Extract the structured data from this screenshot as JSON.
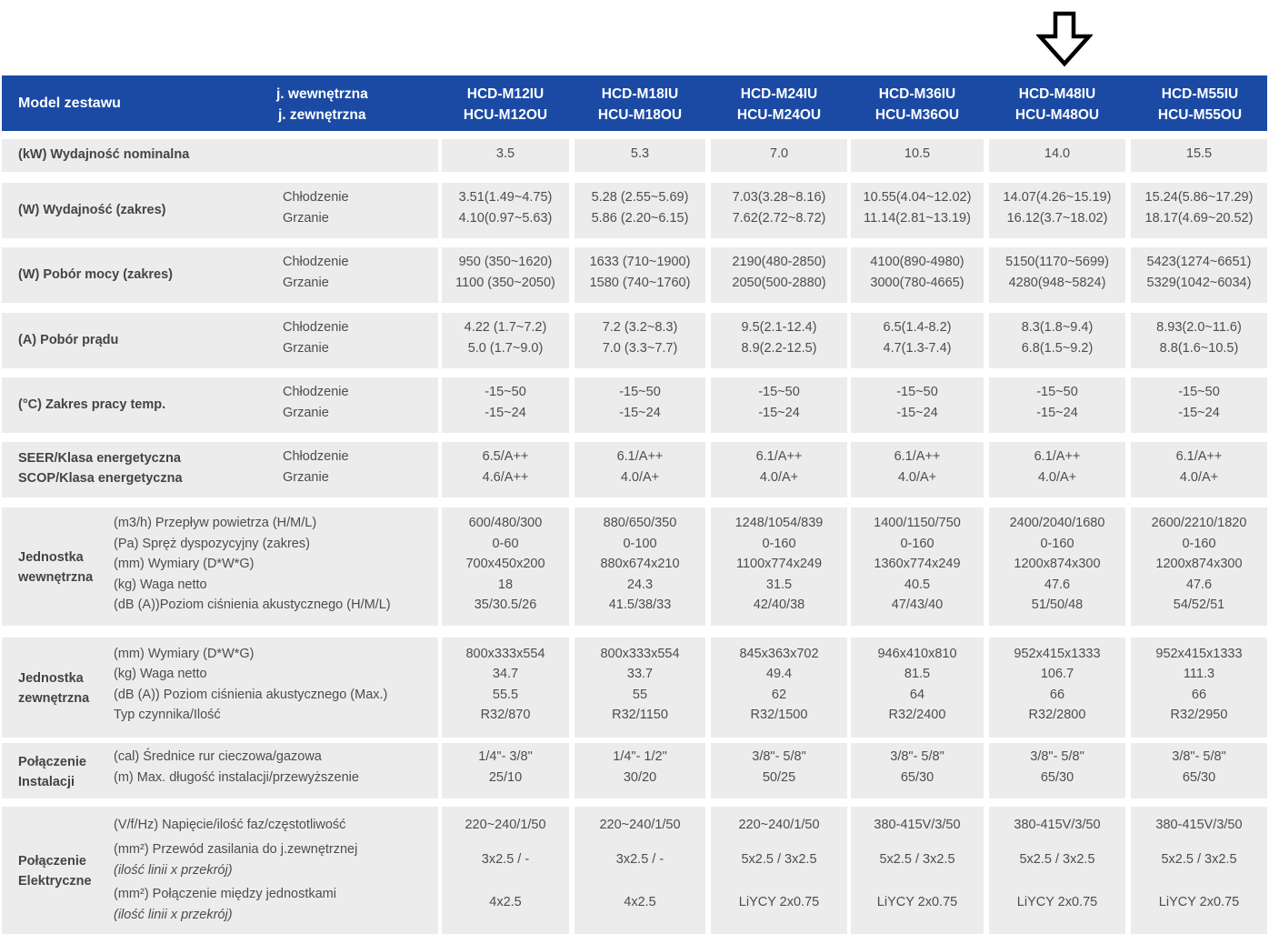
{
  "header": {
    "title": "Model zestawu",
    "unit_indoor": "j. wewnętrzna",
    "unit_outdoor": "j. zewnętrzna",
    "models": [
      {
        "indoor": "HCD-M12IU",
        "outdoor": "HCU-M12OU"
      },
      {
        "indoor": "HCD-M18IU",
        "outdoor": "HCU-M18OU"
      },
      {
        "indoor": "HCD-M24IU",
        "outdoor": "HCU-M24OU"
      },
      {
        "indoor": "HCD-M36IU",
        "outdoor": "HCU-M36OU"
      },
      {
        "indoor": "HCD-M48IU",
        "outdoor": "HCU-M48OU"
      },
      {
        "indoor": "HCD-M55IU",
        "outdoor": "HCU-M55OU"
      }
    ]
  },
  "rows": {
    "capacity_nominal": {
      "label": "(kW) Wydajność nominalna",
      "values": [
        "3.5",
        "5.3",
        "7.0",
        "10.5",
        "14.0",
        "15.5"
      ]
    },
    "capacity_range": {
      "label": "(W) Wydajność (zakres)",
      "sub": [
        "Chłodzenie",
        "Grzanie"
      ],
      "values": [
        [
          "3.51(1.49~4.75)",
          "4.10(0.97~5.63)"
        ],
        [
          "5.28 (2.55~5.69)",
          "5.86 (2.20~6.15)"
        ],
        [
          "7.03(3.28~8.16)",
          "7.62(2.72~8.72)"
        ],
        [
          "10.55(4.04~12.02)",
          "11.14(2.81~13.19)"
        ],
        [
          "14.07(4.26~15.19)",
          "16.12(3.7~18.02)"
        ],
        [
          "15.24(5.86~17.29)",
          "18.17(4.69~20.52)"
        ]
      ]
    },
    "power_input": {
      "label": "(W) Pobór mocy (zakres)",
      "sub": [
        "Chłodzenie",
        "Grzanie"
      ],
      "values": [
        [
          "950 (350~1620)",
          "1100 (350~2050)"
        ],
        [
          "1633 (710~1900)",
          "1580 (740~1760)"
        ],
        [
          "2190(480-2850)",
          "2050(500-2880)"
        ],
        [
          "4100(890-4980)",
          "3000(780-4665)"
        ],
        [
          "5150(1170~5699)",
          "4280(948~5824)"
        ],
        [
          "5423(1274~6651)",
          "5329(1042~6034)"
        ]
      ]
    },
    "current": {
      "label": "(A) Pobór prądu",
      "sub": [
        "Chłodzenie",
        "Grzanie"
      ],
      "values": [
        [
          "4.22 (1.7~7.2)",
          "5.0 (1.7~9.0)"
        ],
        [
          "7.2 (3.2~8.3)",
          "7.0 (3.3~7.7)"
        ],
        [
          "9.5(2.1-12.4)",
          "8.9(2.2-12.5)"
        ],
        [
          "6.5(1.4-8.2)",
          "4.7(1.3-7.4)"
        ],
        [
          "8.3(1.8~9.4)",
          "6.8(1.5~9.2)"
        ],
        [
          "8.93(2.0~11.6)",
          "8.8(1.6~10.5)"
        ]
      ]
    },
    "temp_range": {
      "label": "(°C) Zakres pracy temp.",
      "sub": [
        "Chłodzenie",
        "Grzanie"
      ],
      "values": [
        [
          "-15~50",
          "-15~24"
        ],
        [
          "-15~50",
          "-15~24"
        ],
        [
          "-15~50",
          "-15~24"
        ],
        [
          "-15~50",
          "-15~24"
        ],
        [
          "-15~50",
          "-15~24"
        ],
        [
          "-15~50",
          "-15~24"
        ]
      ]
    },
    "energy_class": {
      "label": [
        "SEER/Klasa energetyczna",
        "SCOP/Klasa energetyczna"
      ],
      "sub": [
        "Chłodzenie",
        "Grzanie"
      ],
      "values": [
        [
          "6.5/A++",
          "4.6/A++"
        ],
        [
          "6.1/A++",
          "4.0/A+"
        ],
        [
          "6.1/A++",
          "4.0/A+"
        ],
        [
          "6.1/A++",
          "4.0/A+"
        ],
        [
          "6.1/A++",
          "4.0/A+"
        ],
        [
          "6.1/A++",
          "4.0/A+"
        ]
      ]
    },
    "indoor_unit": {
      "label": [
        "Jednostka",
        "wewnętrzna"
      ],
      "desc": [
        "(m3/h) Przepływ powietrza (H/M/L)",
        "(Pa) Spręż dyspozycyjny (zakres)",
        "(mm) Wymiary (D*W*G)",
        "(kg) Waga netto",
        "(dB (A))Poziom ciśnienia akustycznego (H/M/L)"
      ],
      "values": [
        [
          "600/480/300",
          "0-60",
          "700x450x200",
          "18",
          "35/30.5/26"
        ],
        [
          "880/650/350",
          "0-100",
          "880x674x210",
          "24.3",
          "41.5/38/33"
        ],
        [
          "1248/1054/839",
          "0-160",
          "1100x774x249",
          "31.5",
          "42/40/38"
        ],
        [
          "1400/1150/750",
          "0-160",
          "1360x774x249",
          "40.5",
          "47/43/40"
        ],
        [
          "2400/2040/1680",
          "0-160",
          "1200x874x300",
          "47.6",
          "51/50/48"
        ],
        [
          "2600/2210/1820",
          "0-160",
          "1200x874x300",
          "47.6",
          "54/52/51"
        ]
      ]
    },
    "outdoor_unit": {
      "label": [
        "Jednostka",
        "zewnętrzna"
      ],
      "desc": [
        "(mm) Wymiary (D*W*G)",
        "(kg) Waga netto",
        "(dB (A)) Poziom ciśnienia akustycznego (Max.)",
        "Typ czynnika/Ilość"
      ],
      "values": [
        [
          "800x333x554",
          "34.7",
          "55.5",
          "R32/870"
        ],
        [
          "800x333x554",
          "33.7",
          "55",
          "R32/1150"
        ],
        [
          "845x363x702",
          "49.4",
          "62",
          "R32/1500"
        ],
        [
          "946x410x810",
          "81.5",
          "64",
          "R32/2400"
        ],
        [
          "952x415x1333",
          "106.7",
          "66",
          "R32/2800"
        ],
        [
          "952x415x1333",
          "111.3",
          "66",
          "R32/2950"
        ]
      ]
    },
    "pipe_connection": {
      "label": [
        "Połączenie",
        "Instalacji"
      ],
      "desc": [
        "(cal) Średnice rur cieczowa/gazowa",
        "(m) Max. długość instalacji/przewyższenie"
      ],
      "values": [
        [
          "1/4\"- 3/8\"",
          "25/10"
        ],
        [
          "1/4\"- 1/2\"",
          "30/20"
        ],
        [
          "3/8\"- 5/8\"",
          "50/25"
        ],
        [
          "3/8\"- 5/8\"",
          "65/30"
        ],
        [
          "3/8\"- 5/8\"",
          "65/30"
        ],
        [
          "3/8\"- 5/8\"",
          "65/30"
        ]
      ]
    },
    "electrical": {
      "label": [
        "Połączenie",
        "Elektryczne"
      ],
      "desc": [
        "(V/f/Hz) Napięcie/ilość faz/częstotliwość",
        "(mm²) Przewód zasilania do j.zewnętrznej",
        "(ilość linii x przekrój)",
        "(mm²) Połączenie między jednostkami",
        "(ilość linii x przekrój)"
      ],
      "values": [
        [
          "220~240/1/50",
          "3x2.5 / -",
          "4x2.5"
        ],
        [
          "220~240/1/50",
          "3x2.5 / -",
          "4x2.5"
        ],
        [
          "220~240/1/50",
          "5x2.5 / 3x2.5",
          "LiYCY 2x0.75"
        ],
        [
          "380-415V/3/50",
          "5x2.5 / 3x2.5",
          "LiYCY 2x0.75"
        ],
        [
          "380-415V/3/50",
          "5x2.5 / 3x2.5",
          "LiYCY 2x0.75"
        ],
        [
          "380-415V/3/50",
          "5x2.5 / 3x2.5",
          "LiYCY 2x0.75"
        ]
      ]
    }
  },
  "annotation": {
    "icon": "down-arrow-icon",
    "target_model": "HCD-M48IU"
  }
}
